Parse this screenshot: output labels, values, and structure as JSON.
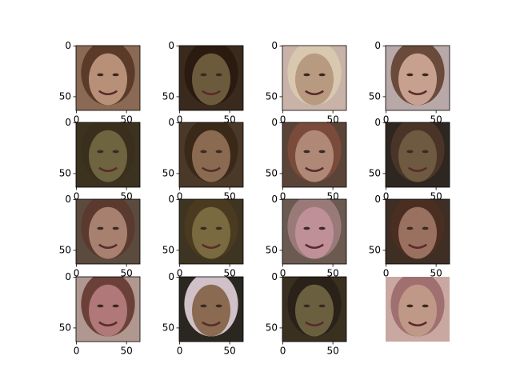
{
  "chart_data": [
    {
      "type": "image",
      "xlim": [
        -0.5,
        63.5
      ],
      "ylim": [
        63.5,
        -0.5
      ],
      "xticks": [
        0,
        50
      ],
      "yticks": [
        0,
        50
      ],
      "axes": true
    },
    {
      "type": "image",
      "xlim": [
        -0.5,
        63.5
      ],
      "ylim": [
        63.5,
        -0.5
      ],
      "xticks": [
        0,
        50
      ],
      "yticks": [
        0,
        50
      ],
      "axes": true
    },
    {
      "type": "image",
      "xlim": [
        -0.5,
        63.5
      ],
      "ylim": [
        63.5,
        -0.5
      ],
      "xticks": [
        0,
        50
      ],
      "yticks": [
        0,
        50
      ],
      "axes": true
    },
    {
      "type": "image",
      "xlim": [
        -0.5,
        63.5
      ],
      "ylim": [
        63.5,
        -0.5
      ],
      "xticks": [
        0,
        50
      ],
      "yticks": [
        0,
        50
      ],
      "axes": true
    },
    {
      "type": "image",
      "xlim": [
        -0.5,
        63.5
      ],
      "ylim": [
        63.5,
        -0.5
      ],
      "xticks": [
        0,
        50
      ],
      "yticks": [
        0,
        50
      ],
      "axes": true
    },
    {
      "type": "image",
      "xlim": [
        -0.5,
        63.5
      ],
      "ylim": [
        63.5,
        -0.5
      ],
      "xticks": [
        0,
        50
      ],
      "yticks": [
        0,
        50
      ],
      "axes": true
    },
    {
      "type": "image",
      "xlim": [
        -0.5,
        63.5
      ],
      "ylim": [
        63.5,
        -0.5
      ],
      "xticks": [
        0,
        50
      ],
      "yticks": [
        0,
        50
      ],
      "axes": true
    },
    {
      "type": "image",
      "xlim": [
        -0.5,
        63.5
      ],
      "ylim": [
        63.5,
        -0.5
      ],
      "xticks": [
        0,
        50
      ],
      "yticks": [
        0,
        50
      ],
      "axes": true
    },
    {
      "type": "image",
      "xlim": [
        -0.5,
        63.5
      ],
      "ylim": [
        63.5,
        -0.5
      ],
      "xticks": [
        0,
        50
      ],
      "yticks": [
        0,
        50
      ],
      "axes": true
    },
    {
      "type": "image",
      "xlim": [
        -0.5,
        63.5
      ],
      "ylim": [
        63.5,
        -0.5
      ],
      "xticks": [
        0,
        50
      ],
      "yticks": [
        0,
        50
      ],
      "axes": true
    },
    {
      "type": "image",
      "xlim": [
        -0.5,
        63.5
      ],
      "ylim": [
        63.5,
        -0.5
      ],
      "xticks": [
        0,
        50
      ],
      "yticks": [
        0,
        50
      ],
      "axes": true
    },
    {
      "type": "image",
      "xlim": [
        -0.5,
        63.5
      ],
      "ylim": [
        63.5,
        -0.5
      ],
      "xticks": [
        0,
        50
      ],
      "yticks": [
        0,
        50
      ],
      "axes": true
    },
    {
      "type": "image",
      "xlim": [
        -0.5,
        63.5
      ],
      "ylim": [
        63.5,
        -0.5
      ],
      "xticks": [
        0,
        50
      ],
      "yticks": [
        0,
        50
      ],
      "axes": true
    },
    {
      "type": "image",
      "xlim": [
        -0.5,
        63.5
      ],
      "ylim": [
        63.5,
        -0.5
      ],
      "xticks": [
        0,
        50
      ],
      "yticks": [
        0,
        50
      ],
      "axes": true
    },
    {
      "type": "image",
      "xlim": [
        -0.5,
        63.5
      ],
      "ylim": [
        63.5,
        -0.5
      ],
      "xticks": [
        0,
        50
      ],
      "yticks": [
        0,
        50
      ],
      "axes": true
    },
    {
      "type": "image",
      "xlim": [
        -0.5,
        63.5
      ],
      "ylim": [
        63.5,
        -0.5
      ],
      "xticks": [
        0,
        50
      ],
      "yticks": [
        0,
        50
      ],
      "axes": false
    }
  ]
}
